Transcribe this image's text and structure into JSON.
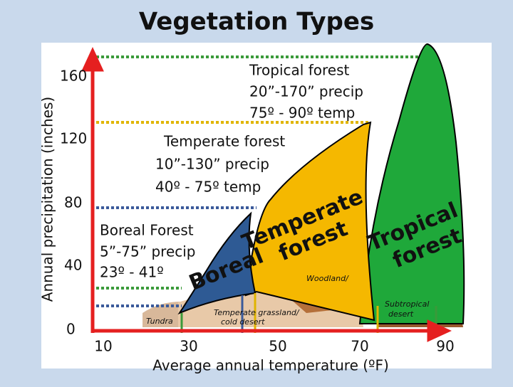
{
  "title": "Vegetation Types",
  "y_axis": {
    "label": "Annual precipitation (inches)",
    "ticks": [
      "160",
      "120",
      "80",
      "40",
      "0"
    ]
  },
  "x_axis": {
    "label": "Average annual temperature (ºF)",
    "ticks": [
      "10",
      "30",
      "50",
      "70",
      "90"
    ]
  },
  "annotations": [
    {
      "lines": [
        "Tropical forest",
        "20”-170” precip",
        "75º - 90º temp"
      ]
    },
    {
      "lines": [
        "Temperate forest",
        "10”-130” precip",
        "40º - 75º temp"
      ]
    },
    {
      "lines": [
        "Boreal Forest",
        "5”-75” precip",
        "23º - 41º"
      ]
    }
  ],
  "regions": [
    {
      "label": "Boreal"
    },
    {
      "lines": [
        "Temperate",
        "forest"
      ]
    },
    {
      "lines": [
        "Tropical",
        "forest"
      ]
    }
  ],
  "background_labels": [
    "Tundra",
    "Temperate grassland/",
    "cold desert",
    "Woodland/",
    "Subtropical",
    "desert"
  ]
}
